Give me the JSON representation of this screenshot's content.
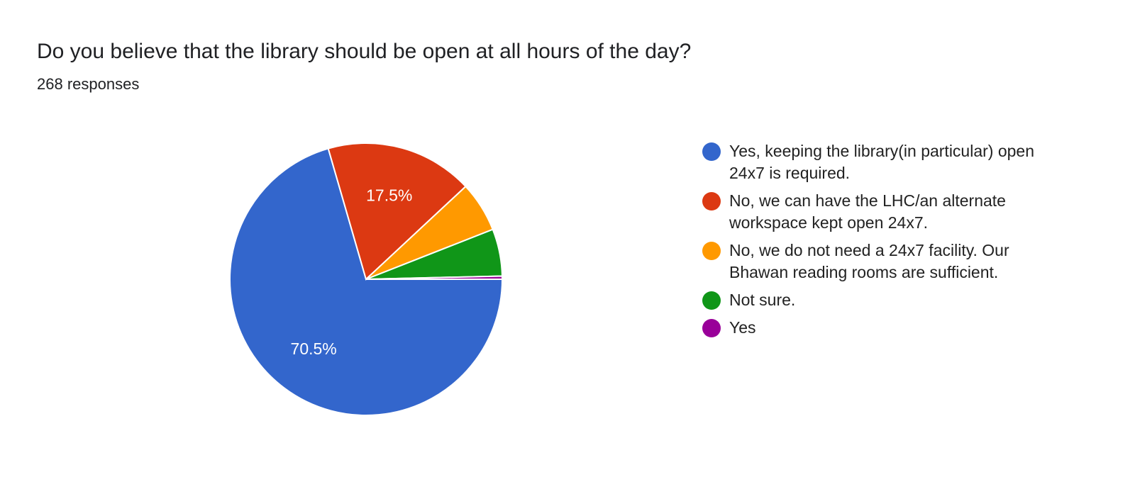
{
  "header": {
    "title": "Do you believe that the library should be open at all hours of the day?",
    "subtitle": "268 responses"
  },
  "chart_data": {
    "type": "pie",
    "title": "Do you believe that the library should be open at all hours of the day?",
    "total_responses": 268,
    "categories": [
      "Yes, keeping the library(in particular) open 24x7 is required.",
      "No, we can have the LHC/an alternate workspace kept open 24x7.",
      "No, we do not need a 24x7 facility. Our Bhawan reading rooms are sufficient.",
      "Not sure.",
      "Yes"
    ],
    "values": [
      189,
      47,
      16,
      15,
      1
    ],
    "percent_labels": [
      "70.5%",
      "17.5%",
      "",
      "",
      ""
    ],
    "colors": [
      "#3366cc",
      "#dc3912",
      "#ff9900",
      "#109618",
      "#990099"
    ],
    "legend": "right"
  }
}
